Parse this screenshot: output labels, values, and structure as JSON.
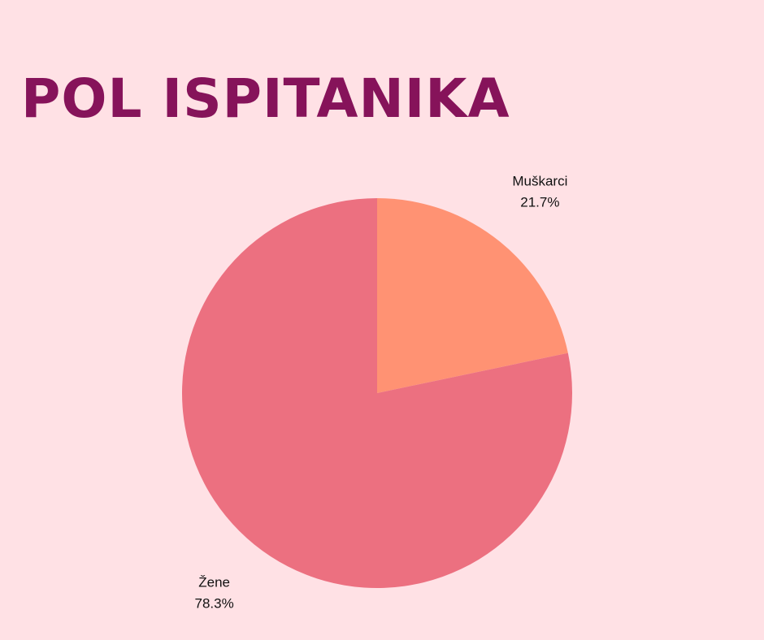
{
  "chart_data": {
    "type": "pie",
    "title": "POL ISPITANIKA",
    "categories": [
      "Muškarci",
      "Žene"
    ],
    "values": [
      21.7,
      78.3
    ],
    "value_labels": [
      "21.7%",
      "78.3%"
    ],
    "colors": [
      "#ff9273",
      "#ec7080"
    ]
  }
}
